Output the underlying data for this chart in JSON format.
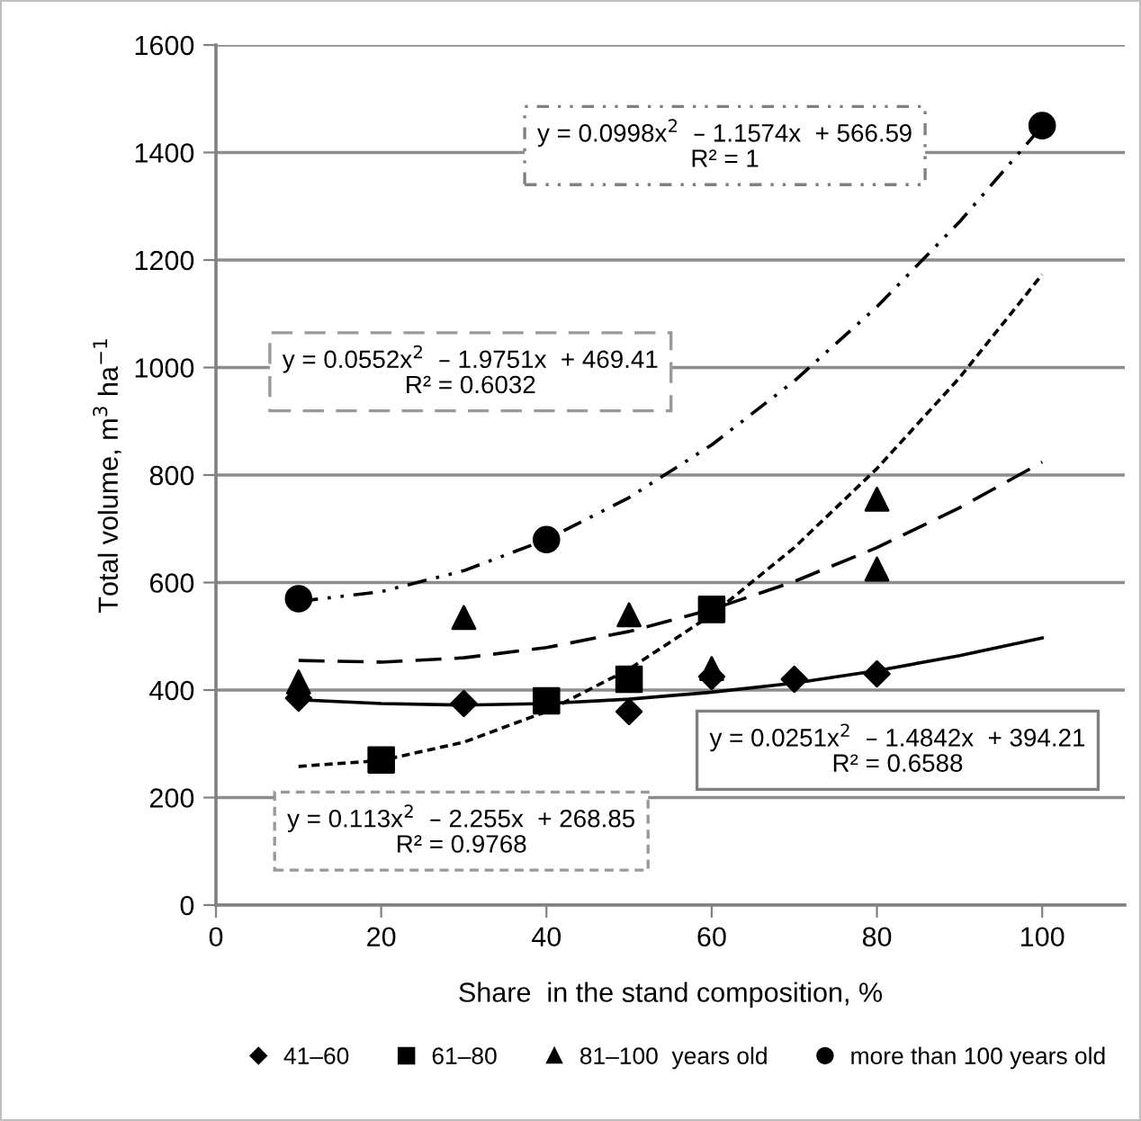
{
  "chart_data": {
    "type": "scatter",
    "xlabel": "Share  in the stand composition, %",
    "ylabel": "Total volume, m$^{3}$ ha$^{−1}$",
    "xlim": [
      0,
      110
    ],
    "xticks": [
      0,
      20,
      40,
      60,
      80,
      100
    ],
    "ylim": [
      0,
      1600
    ],
    "yticks": [
      0,
      200,
      400,
      600,
      800,
      1000,
      1200,
      1400,
      1600
    ],
    "grid": "y",
    "legend": "bottom",
    "series": [
      {
        "name": "41–60",
        "marker": "diamond",
        "color": "#000000",
        "x": [
          10,
          30,
          50,
          60,
          70,
          80
        ],
        "values": [
          385,
          375,
          360,
          425,
          420,
          430
        ]
      },
      {
        "name": "61–80",
        "marker": "square",
        "color": "#000000",
        "x": [
          20,
          40,
          50,
          60
        ],
        "values": [
          270,
          380,
          420,
          550
        ]
      },
      {
        "name": "81–100  years old",
        "marker": "triangle",
        "color": "#000000",
        "x": [
          10,
          30,
          50,
          60,
          80,
          80
        ],
        "values": [
          415,
          535,
          540,
          440,
          625,
          755
        ]
      },
      {
        "name": "more than 100 years old",
        "marker": "circle",
        "color": "#000000",
        "x": [
          10,
          40,
          100
        ],
        "values": [
          570,
          680,
          1450
        ]
      },
      {
        "type": "line",
        "line_style": "solid",
        "color": "#000000",
        "x": [
          10,
          20,
          30,
          40,
          50,
          60,
          70,
          80,
          90,
          100
        ],
        "values": [
          382,
          375,
          372,
          375,
          383,
          396,
          413,
          436,
          464,
          497
        ]
      },
      {
        "type": "line",
        "line_style": "dotted",
        "color": "#000000",
        "x": [
          10,
          20,
          30,
          40,
          50,
          60,
          70,
          80,
          90,
          100
        ],
        "values": [
          258,
          269,
          303,
          360,
          439,
          540,
          665,
          812,
          981,
          1173
        ]
      },
      {
        "type": "line",
        "line_style": "dashed",
        "color": "#000000",
        "x": [
          10,
          20,
          30,
          40,
          50,
          60,
          70,
          80,
          90,
          100
        ],
        "values": [
          455,
          452,
          460,
          479,
          509,
          550,
          602,
          665,
          739,
          824
        ]
      },
      {
        "type": "line",
        "line_style": "dashdot",
        "color": "#000000",
        "x": [
          10,
          20,
          30,
          40,
          50,
          60,
          70,
          80,
          90,
          100
        ],
        "values": [
          565,
          583,
          622,
          680,
          758,
          856,
          975,
          1113,
          1271,
          1449
        ]
      }
    ],
    "annotations": [
      "y = 0.0998x$^{2}$  – 1.1574x  + 566.59\nR² = 1",
      "y = 0.0552x$^{2}$  – 1.9751x  + 469.41\nR² = 0.6032",
      "y = 0.0251x$^{2}$  – 1.4842x  + 394.21\nR² = 0.6588",
      "y = 0.113x$^{2}$  – 2.255x  + 268.85\nR² = 0.9768"
    ]
  }
}
